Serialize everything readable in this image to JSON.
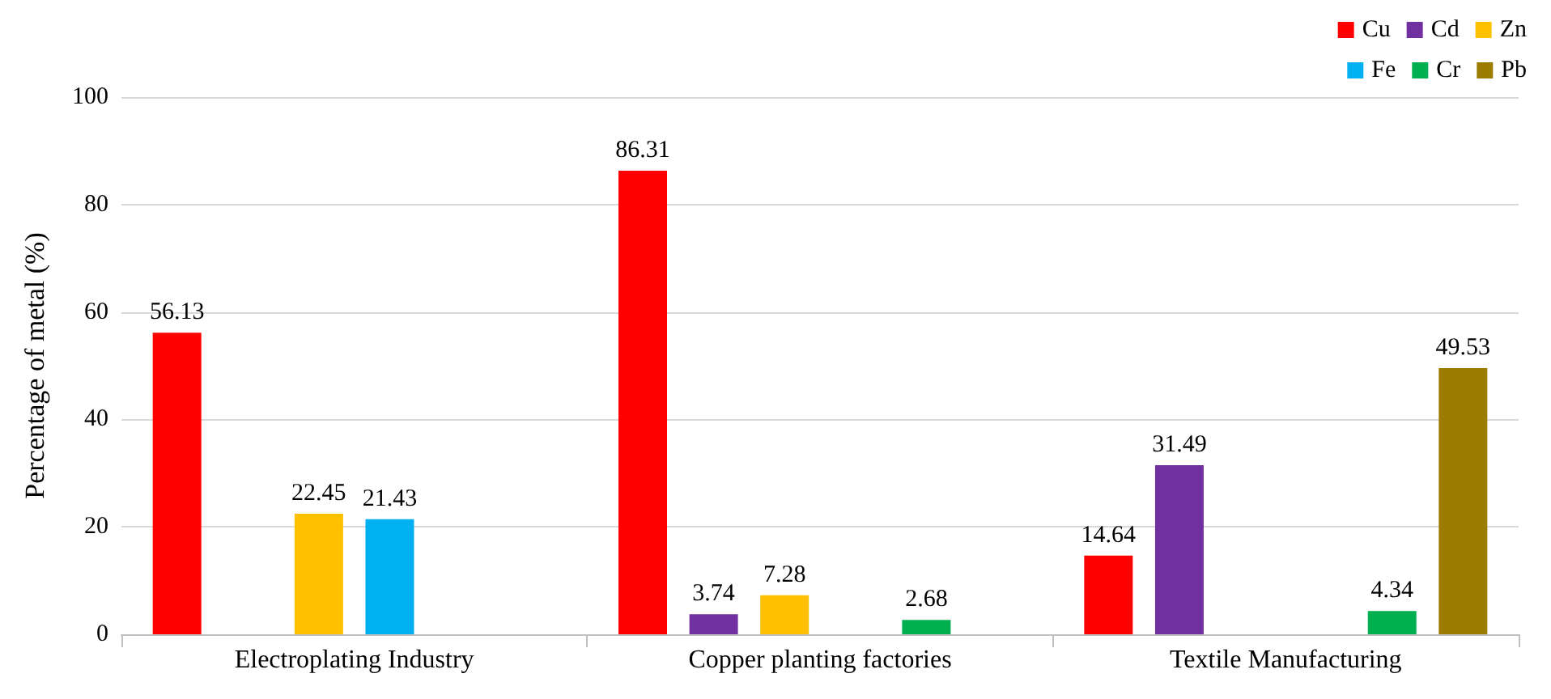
{
  "chart_data": {
    "type": "bar",
    "ylabel": "Percentage of metal (%)",
    "categories": [
      "Electroplating Industry",
      "Copper planting factories",
      "Textile Manufacturing"
    ],
    "series": [
      {
        "name": "Cu",
        "color": "#ff0000",
        "values": [
          56.13,
          86.31,
          14.64
        ]
      },
      {
        "name": "Cd",
        "color": "#7030a0",
        "values": [
          null,
          3.74,
          31.49
        ]
      },
      {
        "name": "Zn",
        "color": "#ffc000",
        "values": [
          22.45,
          7.28,
          null
        ]
      },
      {
        "name": "Fe",
        "color": "#00b0f0",
        "values": [
          21.43,
          null,
          null
        ]
      },
      {
        "name": "Cr",
        "color": "#00b050",
        "values": [
          null,
          2.68,
          4.34
        ]
      },
      {
        "name": "Pb",
        "color": "#9c7c00",
        "values": [
          null,
          null,
          49.53
        ]
      }
    ],
    "ylim": [
      0,
      100
    ],
    "yticks": [
      0,
      20,
      40,
      60,
      80,
      100
    ],
    "grid": "y",
    "legend": "top right",
    "data_labels": true
  }
}
